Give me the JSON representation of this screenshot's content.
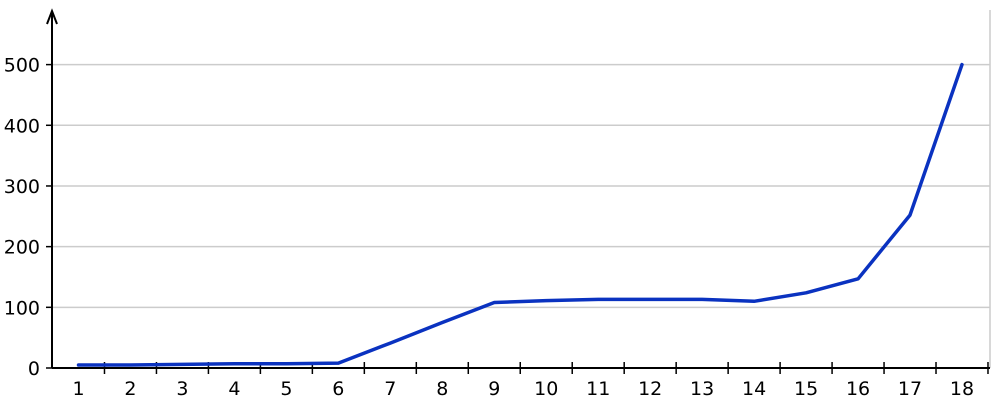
{
  "chart_data": {
    "type": "line",
    "title": "",
    "xlabel": "",
    "ylabel": "",
    "x": [
      1,
      2,
      3,
      4,
      5,
      6,
      7,
      8,
      9,
      10,
      11,
      12,
      13,
      14,
      15,
      16,
      17,
      18
    ],
    "x_tick_labels": [
      "1",
      "2",
      "3",
      "4",
      "5",
      "6",
      "7",
      "8",
      "9",
      "10",
      "11",
      "12",
      "13",
      "14",
      "15",
      "16",
      "17",
      "18"
    ],
    "y_ticks": [
      0,
      100,
      200,
      300,
      400,
      500
    ],
    "y_tick_labels": [
      "0",
      "100",
      "200",
      "300",
      "400",
      "500"
    ],
    "ylim": [
      0,
      590
    ],
    "xlim": [
      0.5,
      18.5
    ],
    "grid": "horizontal",
    "series": [
      {
        "values": [
          5,
          5,
          6,
          7,
          7,
          8,
          41,
          75,
          108,
          111,
          113,
          113,
          113,
          110,
          124,
          147,
          252,
          500
        ],
        "color": "#0a32c0"
      }
    ]
  }
}
